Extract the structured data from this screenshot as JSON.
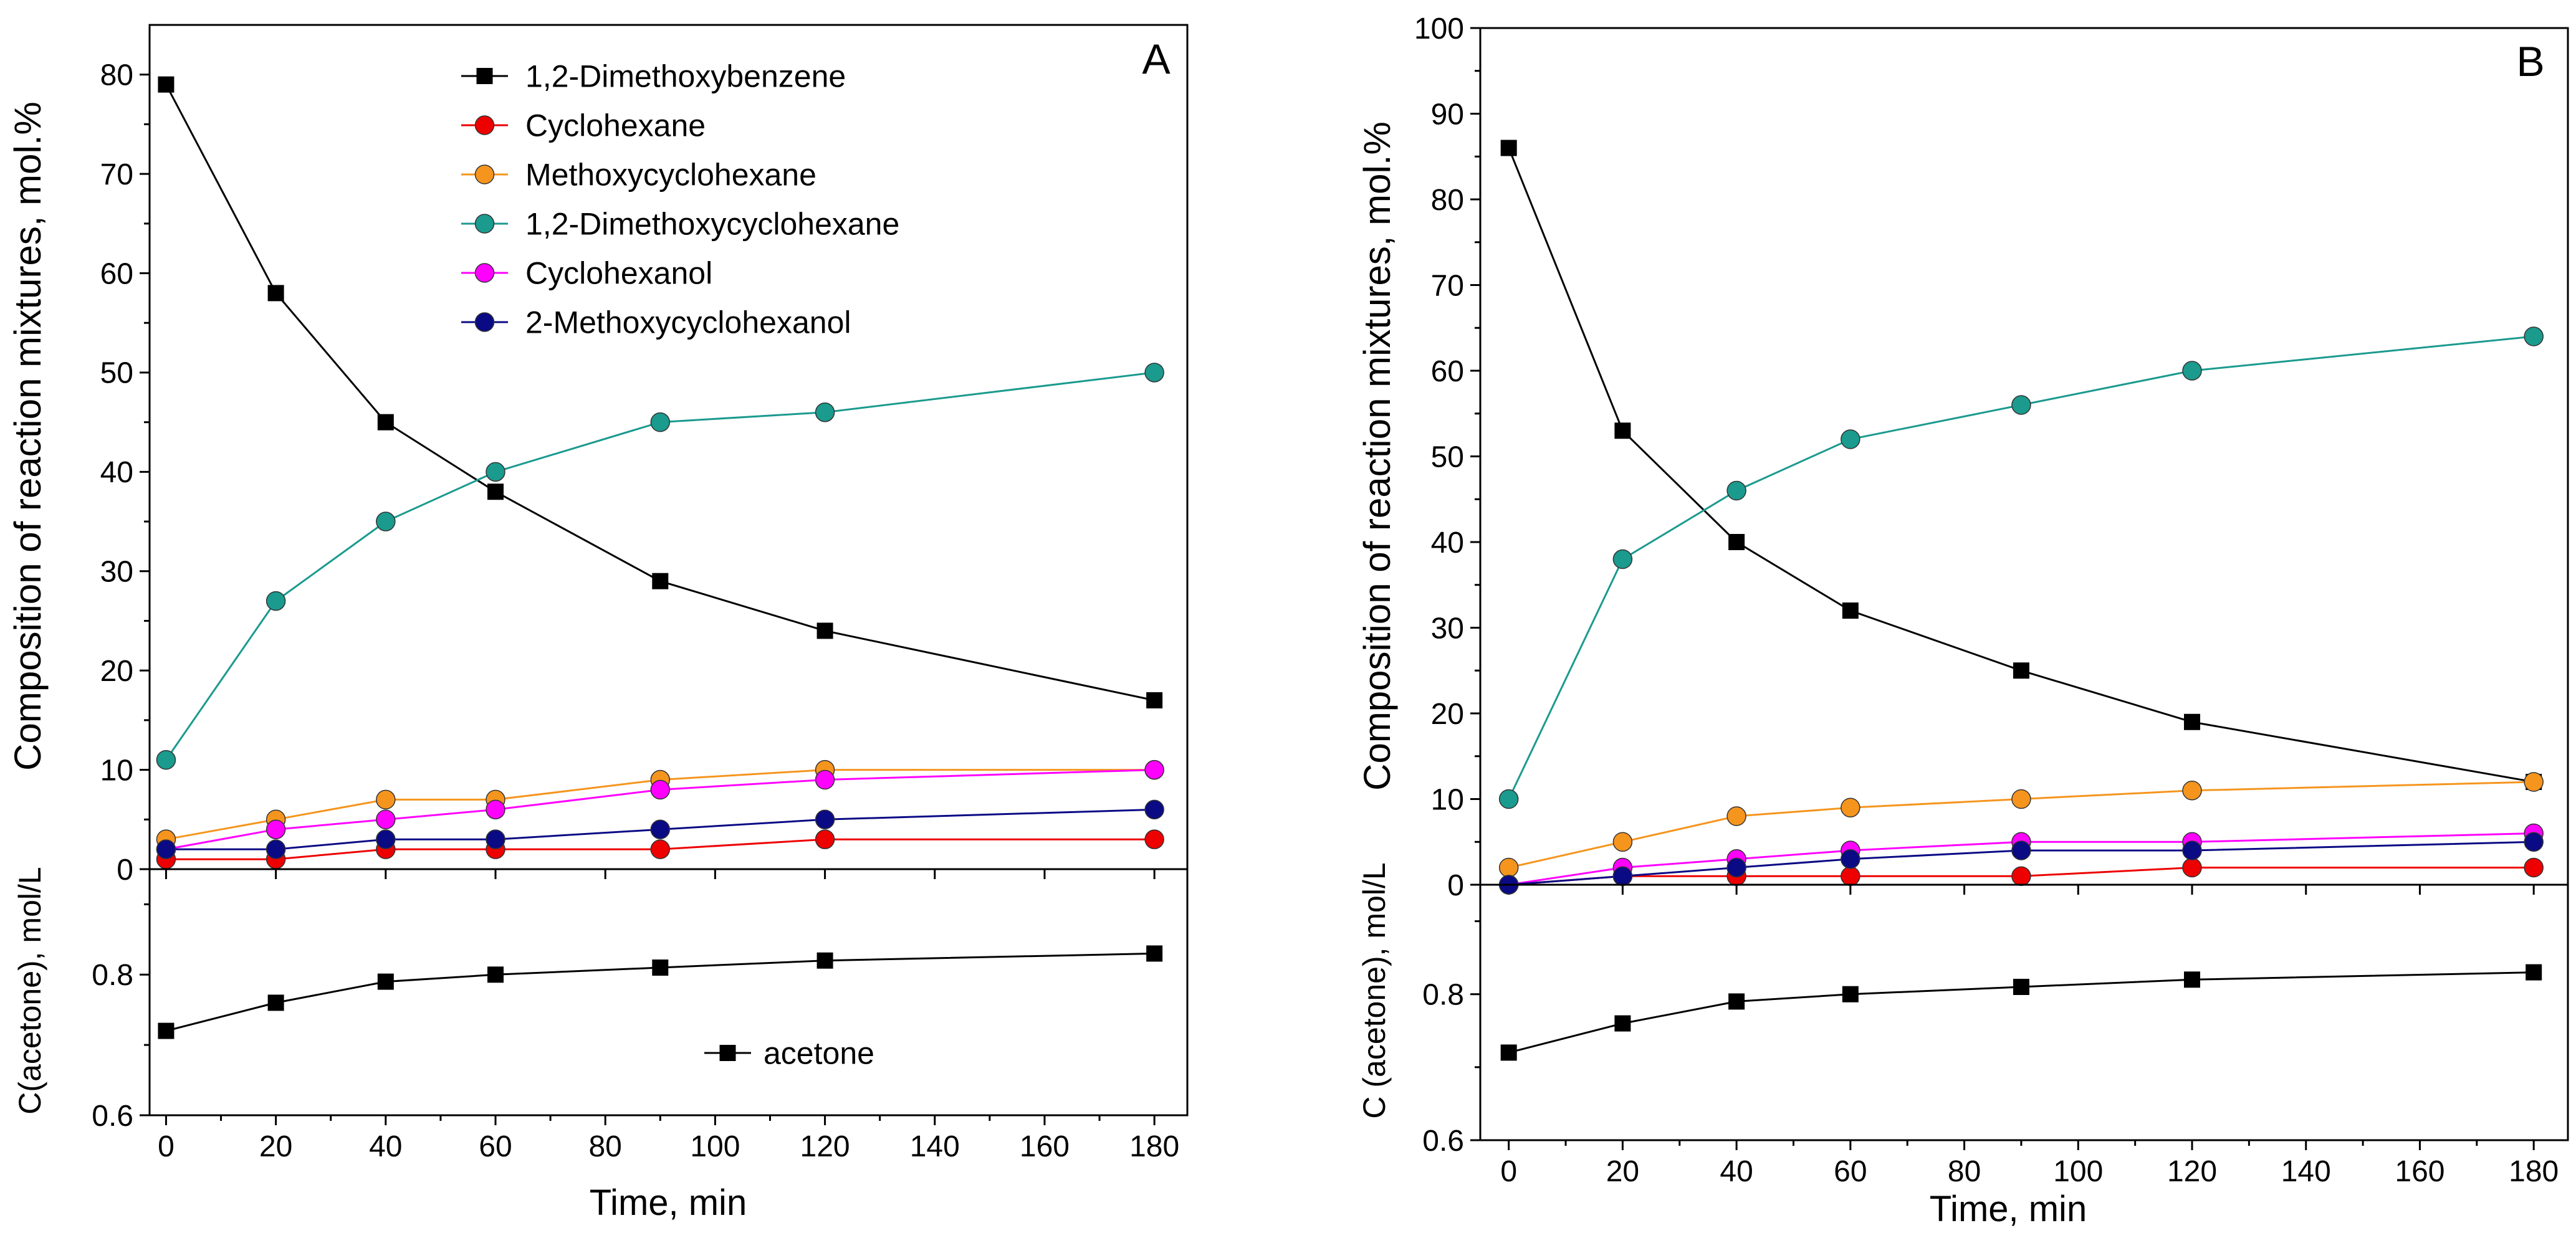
{
  "colors": {
    "1,2-Dimethoxybenzene": "#000000",
    "Cyclohexane": "#ee0000",
    "Methoxycyclohexane": "#f5951e",
    "1,2-Dimethoxycyclohexane": "#1b9a8e",
    "Cyclohexanol": "#ff00ff",
    "2-Methoxycyclohexanol": "#0a0a85"
  },
  "chart_data": [
    {
      "type": "line",
      "panel": "A",
      "title": "A",
      "xlabel": "Time, min",
      "ylabel": "Composition of reaction mixtures, mol.%",
      "xlim": [
        -3,
        186
      ],
      "ylim": [
        0,
        85
      ],
      "x": [
        0,
        20,
        40,
        60,
        90,
        120,
        180
      ],
      "x_ticks": [
        0,
        20,
        40,
        60,
        80,
        100,
        120,
        140,
        160,
        180
      ],
      "y_ticks": [
        0,
        10,
        20,
        30,
        40,
        50,
        60,
        70,
        80
      ],
      "legend_position": "top-right",
      "series": [
        {
          "name": "1,2-Dimethoxybenzene",
          "marker": "square",
          "values": [
            79,
            58,
            45,
            38,
            29,
            24,
            17
          ]
        },
        {
          "name": "Cyclohexane",
          "marker": "circle",
          "values": [
            1,
            1,
            2,
            2,
            2,
            3,
            3
          ]
        },
        {
          "name": "Methoxycyclohexane",
          "marker": "circle",
          "values": [
            3,
            5,
            7,
            7,
            9,
            10,
            10
          ]
        },
        {
          "name": "1,2-Dimethoxycyclohexane",
          "marker": "circle",
          "values": [
            11,
            27,
            35,
            40,
            45,
            46,
            50
          ]
        },
        {
          "name": "Cyclohexanol",
          "marker": "circle",
          "values": [
            2,
            4,
            5,
            6,
            8,
            9,
            10
          ]
        },
        {
          "name": "2-Methoxycyclohexanol",
          "marker": "circle",
          "values": [
            2,
            2,
            3,
            3,
            4,
            5,
            6
          ]
        }
      ]
    },
    {
      "type": "line",
      "panel": "A-bottom",
      "xlabel": "Time, min",
      "ylabel": "C(acetone), mol/L",
      "xlim": [
        -3,
        186
      ],
      "ylim": [
        0.6,
        0.95
      ],
      "x": [
        0,
        20,
        40,
        60,
        90,
        120,
        180
      ],
      "x_ticks": [
        0,
        20,
        40,
        60,
        80,
        100,
        120,
        140,
        160,
        180
      ],
      "y_ticks": [
        0.6,
        0.8
      ],
      "legend_position": "bottom-center",
      "series": [
        {
          "name": "acetone",
          "marker": "square",
          "values": [
            0.72,
            0.76,
            0.79,
            0.8,
            0.81,
            0.82,
            0.83
          ]
        }
      ]
    },
    {
      "type": "line",
      "panel": "B",
      "title": "B",
      "xlabel": "Time, min",
      "ylabel": "Composition of reaction mixtures, mol.%",
      "xlim": [
        -5,
        186
      ],
      "ylim": [
        0,
        100
      ],
      "x": [
        0,
        20,
        40,
        60,
        90,
        120,
        180
      ],
      "x_ticks": [
        0,
        20,
        40,
        60,
        80,
        100,
        120,
        140,
        160,
        180
      ],
      "y_ticks": [
        0,
        10,
        20,
        30,
        40,
        50,
        60,
        70,
        80,
        90,
        100
      ],
      "series": [
        {
          "name": "1,2-Dimethoxybenzene",
          "marker": "square",
          "values": [
            86,
            53,
            40,
            32,
            25,
            19,
            12
          ]
        },
        {
          "name": "Cyclohexane",
          "marker": "circle",
          "values": [
            0,
            1,
            1,
            1,
            1,
            2,
            2
          ]
        },
        {
          "name": "Methoxycyclohexane",
          "marker": "circle",
          "values": [
            2,
            5,
            8,
            9,
            10,
            11,
            12
          ]
        },
        {
          "name": "1,2-Dimethoxycyclohexane",
          "marker": "circle",
          "values": [
            10,
            38,
            46,
            52,
            56,
            60,
            64
          ]
        },
        {
          "name": "Cyclohexanol",
          "marker": "circle",
          "values": [
            0,
            2,
            3,
            4,
            5,
            5,
            6
          ]
        },
        {
          "name": "2-Methoxycyclohexanol",
          "marker": "circle",
          "values": [
            0,
            1,
            2,
            3,
            4,
            4,
            5
          ]
        }
      ]
    },
    {
      "type": "line",
      "panel": "B-bottom",
      "xlabel": "Time, min",
      "ylabel": "C (acetone), mol/L",
      "xlim": [
        -5,
        186
      ],
      "ylim": [
        0.6,
        0.95
      ],
      "x": [
        0,
        20,
        40,
        60,
        90,
        120,
        180
      ],
      "x_ticks": [
        0,
        20,
        40,
        60,
        80,
        100,
        120,
        140,
        160,
        180
      ],
      "y_ticks": [
        0.6,
        0.8
      ],
      "series": [
        {
          "name": "acetone",
          "marker": "square",
          "values": [
            0.72,
            0.76,
            0.79,
            0.8,
            0.81,
            0.82,
            0.83
          ]
        }
      ]
    }
  ]
}
